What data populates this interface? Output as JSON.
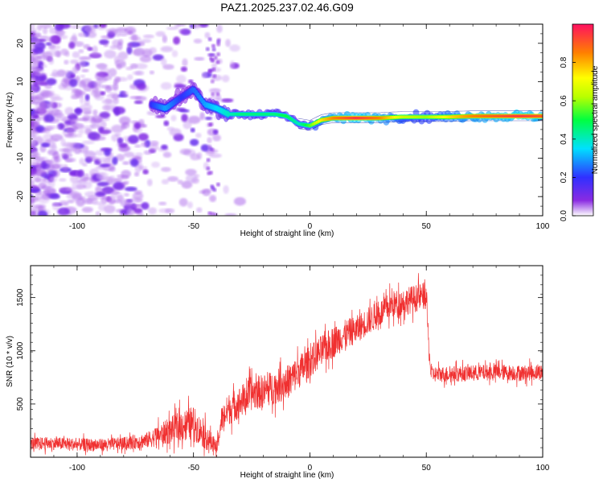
{
  "title": "PAZ1.2025.237.02.46.G09",
  "colors": {
    "snr_line": "#f03030",
    "spectrogram_base": "#8a2be2",
    "frame": "#000000"
  },
  "chart_data": [
    {
      "type": "heatmap",
      "xlabel": "Height of straight line (km)",
      "ylabel": "Frequency (Hz)",
      "xlim": [
        -120,
        100
      ],
      "ylim": [
        -25,
        25
      ],
      "x_ticks": [
        "-100",
        "-50",
        "0",
        "50",
        "100"
      ],
      "y_ticks": [
        "-20",
        "-10",
        "0",
        "10",
        "20"
      ],
      "colorbar": {
        "label": "Normalized spectral amplitude",
        "range": [
          0.0,
          1.0
        ],
        "ticks": [
          "0.0",
          "0.2",
          "0.4",
          "0.6",
          "0.8"
        ]
      },
      "ridge": {
        "x": [
          -68,
          -62,
          -55,
          -50,
          -45,
          -40,
          -35,
          -30,
          -25,
          -20,
          -15,
          -10,
          -5,
          0,
          5,
          10,
          20,
          30,
          40,
          50,
          60,
          70,
          80,
          90,
          100
        ],
        "frequency": [
          4,
          3,
          6,
          8,
          4,
          3,
          1.5,
          1.5,
          1.5,
          1.5,
          1.5,
          1.0,
          -1.0,
          -1.5,
          0.0,
          0.5,
          0.5,
          0.5,
          0.8,
          0.8,
          0.8,
          1.0,
          1.0,
          1.0,
          1.0
        ],
        "amplitude": [
          0.2,
          0.3,
          0.2,
          0.25,
          0.3,
          0.35,
          0.4,
          0.45,
          0.45,
          0.45,
          0.45,
          0.5,
          0.4,
          0.55,
          0.75,
          0.85,
          0.95,
          0.85,
          0.65,
          0.6,
          0.75,
          0.85,
          0.9,
          0.95,
          0.9
        ]
      }
    },
    {
      "type": "line",
      "xlabel": "Height of straight line (km)",
      "ylabel": "SNR (10 * v/v)",
      "xlim": [
        -120,
        100
      ],
      "ylim": [
        0,
        1800
      ],
      "x_ticks": [
        "-100",
        "-50",
        "0",
        "50",
        "100"
      ],
      "y_ticks": [
        "500",
        "1000",
        "1500"
      ],
      "series": [
        {
          "x": [
            -120,
            -110,
            -100,
            -90,
            -80,
            -70,
            -60,
            -55,
            -50,
            -45,
            -40,
            -38,
            -35,
            -30,
            -25,
            -20,
            -15,
            -10,
            -5,
            0,
            5,
            10,
            15,
            20,
            25,
            30,
            35,
            40,
            45,
            50,
            51,
            52,
            60,
            70,
            80,
            90,
            100
          ],
          "y": [
            130,
            130,
            120,
            115,
            130,
            160,
            250,
            300,
            320,
            200,
            80,
            350,
            450,
            520,
            600,
            620,
            660,
            700,
            800,
            900,
            1000,
            1080,
            1150,
            1200,
            1280,
            1350,
            1430,
            1460,
            1490,
            1520,
            1050,
            780,
            780,
            790,
            800,
            790,
            800
          ],
          "noise": [
            120,
            120,
            120,
            120,
            120,
            150,
            250,
            300,
            320,
            250,
            150,
            250,
            300,
            300,
            320,
            320,
            320,
            320,
            320,
            300,
            300,
            300,
            280,
            260,
            260,
            260,
            260,
            260,
            260,
            260,
            200,
            150,
            150,
            150,
            150,
            150,
            150
          ]
        }
      ]
    }
  ]
}
